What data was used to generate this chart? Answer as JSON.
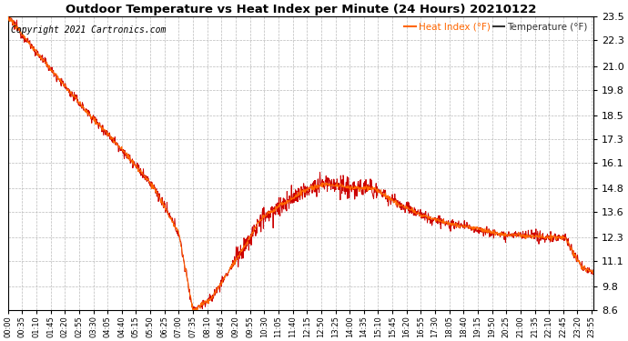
{
  "title": "Outdoor Temperature vs Heat Index per Minute (24 Hours) 20210122",
  "copyright": "Copyright 2021 Cartronics.com",
  "legend_heat": "Heat Index (°F)",
  "legend_temp": "Temperature (°F)",
  "heat_color": "#ff6600",
  "temp_color": "#cc0000",
  "bg_color": "#ffffff",
  "grid_color": "#bbbbbb",
  "ylim": [
    8.6,
    23.5
  ],
  "yticks": [
    8.6,
    9.8,
    11.1,
    12.3,
    13.6,
    14.8,
    16.1,
    17.3,
    18.5,
    19.8,
    21.0,
    22.3,
    23.5
  ],
  "total_minutes": 1440,
  "figwidth": 6.9,
  "figheight": 3.75,
  "dpi": 100
}
